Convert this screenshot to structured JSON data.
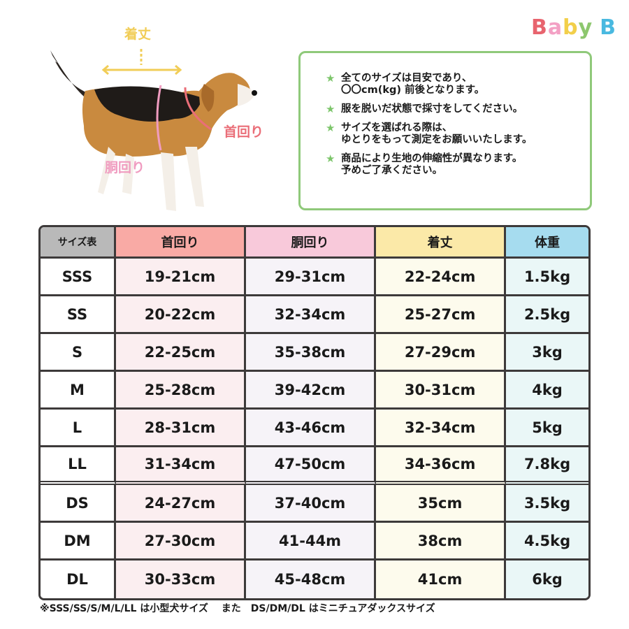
{
  "logo": {
    "text": "Baby B",
    "letters": [
      "B",
      "a",
      "b",
      "y",
      " ",
      "B"
    ],
    "colors": [
      "#e8646e",
      "#f3a0c4",
      "#f2cf4a",
      "#8dc76e",
      "#ffffff",
      "#49b9e0"
    ]
  },
  "diagram": {
    "length_label": "着丈",
    "neck_label": "首回り",
    "body_label": "胴回り"
  },
  "notes": [
    {
      "lines": [
        "全てのサイズは目安であり、",
        "〇〇cm(kg) 前後となります。"
      ]
    },
    {
      "lines": [
        "服を脱いだ状態で採寸をしてください。"
      ]
    },
    {
      "lines": [
        "サイズを選ばれる際は、",
        "ゆとりをもって測定をお願いいたします。"
      ]
    },
    {
      "lines": [
        "商品により生地の伸縮性が異なります。",
        "予めご了承ください。"
      ]
    }
  ],
  "table": {
    "headers": [
      "サイズ表",
      "首回り",
      "胴回り",
      "着丈",
      "体重"
    ],
    "rows": [
      [
        "SSS",
        "19-21cm",
        "29-31cm",
        "22-24cm",
        "1.5kg"
      ],
      [
        "SS",
        "20-22cm",
        "32-34cm",
        "25-27cm",
        "2.5kg"
      ],
      [
        "S",
        "22-25cm",
        "35-38cm",
        "27-29cm",
        "3kg"
      ],
      [
        "M",
        "25-28cm",
        "39-42cm",
        "30-31cm",
        "4kg"
      ],
      [
        "L",
        "28-31cm",
        "43-46cm",
        "32-34cm",
        "5kg"
      ],
      [
        "LL",
        "31-34cm",
        "47-50cm",
        "34-36cm",
        "7.8kg"
      ],
      [
        "DS",
        "24-27cm",
        "37-40cm",
        "35cm",
        "3.5kg"
      ],
      [
        "DM",
        "27-30cm",
        "41-44m",
        "38cm",
        "4.5kg"
      ],
      [
        "DL",
        "30-33cm",
        "45-48cm",
        "41cm",
        "6kg"
      ]
    ]
  },
  "footnote": "※SSS/SS/S/M/L/LL は小型犬サイズ　 また　DS/DM/DL はミニチュアダックスサイズ"
}
